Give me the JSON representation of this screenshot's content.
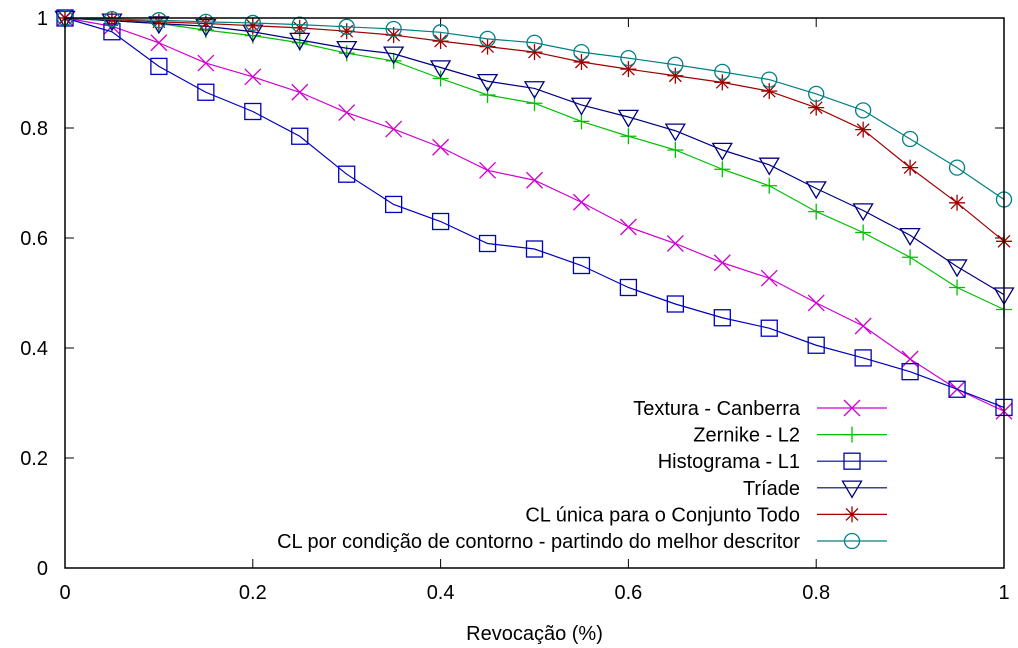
{
  "chart_data": {
    "type": "line",
    "title": "",
    "xlabel": "Revocação (%)",
    "ylabel": "",
    "xlim": [
      0,
      1
    ],
    "ylim": [
      0,
      1
    ],
    "grid": false,
    "legend_position": "bottom-right",
    "x_ticks": [
      "0",
      "0.2",
      "0.4",
      "0.6",
      "0.8",
      "1"
    ],
    "y_ticks": [
      "0",
      "0.2",
      "0.4",
      "0.6",
      "0.8",
      "1"
    ],
    "x": [
      0,
      0.05,
      0.1,
      0.15,
      0.2,
      0.25,
      0.3,
      0.35,
      0.4,
      0.45,
      0.5,
      0.55,
      0.6,
      0.65,
      0.7,
      0.75,
      0.8,
      0.85,
      0.9,
      0.95,
      1
    ],
    "series": [
      {
        "name": "Textura - Canberra",
        "color": "#d000d0",
        "marker": "x",
        "values": [
          1.0,
          0.985,
          0.955,
          0.918,
          0.893,
          0.865,
          0.828,
          0.798,
          0.765,
          0.723,
          0.705,
          0.665,
          0.62,
          0.59,
          0.555,
          0.527,
          0.482,
          0.44,
          0.38,
          0.325,
          0.285
        ]
      },
      {
        "name": "Zernike - L2",
        "color": "#00c000",
        "marker": "plus",
        "values": [
          1.0,
          0.995,
          0.99,
          0.978,
          0.968,
          0.955,
          0.936,
          0.922,
          0.89,
          0.86,
          0.845,
          0.812,
          0.785,
          0.76,
          0.725,
          0.695,
          0.648,
          0.61,
          0.565,
          0.51,
          0.47
        ]
      },
      {
        "name": "Histograma - L1",
        "color": "#0000c0",
        "marker": "square",
        "values": [
          1.0,
          0.975,
          0.912,
          0.865,
          0.83,
          0.785,
          0.716,
          0.661,
          0.63,
          0.59,
          0.58,
          0.55,
          0.51,
          0.48,
          0.455,
          0.436,
          0.405,
          0.382,
          0.357,
          0.325,
          0.292
        ]
      },
      {
        "name": "Tríade",
        "color": "#000080",
        "marker": "triangle-down",
        "values": [
          1.0,
          0.995,
          0.99,
          0.985,
          0.975,
          0.96,
          0.945,
          0.935,
          0.91,
          0.885,
          0.872,
          0.842,
          0.82,
          0.795,
          0.76,
          0.733,
          0.69,
          0.65,
          0.605,
          0.548,
          0.497
        ]
      },
      {
        "name": "CL única para o Conjunto Todo",
        "color": "#a00000",
        "marker": "asterisk",
        "values": [
          1.0,
          0.997,
          0.993,
          0.99,
          0.986,
          0.982,
          0.976,
          0.969,
          0.958,
          0.948,
          0.938,
          0.92,
          0.907,
          0.895,
          0.883,
          0.867,
          0.837,
          0.797,
          0.728,
          0.664,
          0.594
        ]
      },
      {
        "name": "CL por condição de contorno - partindo do melhor descritor",
        "color": "#008080",
        "marker": "circle",
        "values": [
          1.0,
          0.998,
          0.996,
          0.993,
          0.991,
          0.988,
          0.984,
          0.98,
          0.974,
          0.962,
          0.955,
          0.938,
          0.927,
          0.915,
          0.902,
          0.888,
          0.862,
          0.832,
          0.78,
          0.728,
          0.67
        ]
      }
    ]
  }
}
